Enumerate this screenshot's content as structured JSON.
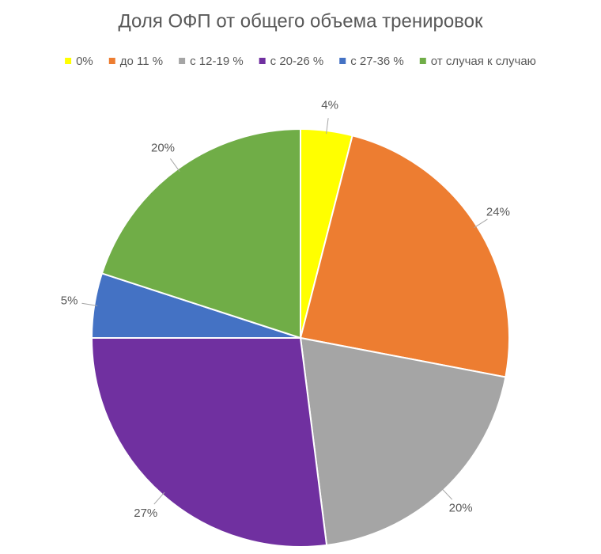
{
  "chart_data": {
    "type": "pie",
    "title": "Доля ОФП от общего объема тренировок",
    "categories": [
      "0%",
      "до 11 %",
      "с 12-19 %",
      "с 20-26 %",
      "с 27-36 %",
      "от случая к случаю"
    ],
    "values": [
      4,
      24,
      20,
      27,
      5,
      20
    ],
    "value_labels": [
      "4%",
      "24%",
      "20%",
      "27%",
      "5%",
      "20%"
    ],
    "colors": [
      "#ffff00",
      "#ed7d31",
      "#a5a5a5",
      "#7030a0",
      "#4472c4",
      "#70ad47"
    ],
    "legend": "top"
  }
}
